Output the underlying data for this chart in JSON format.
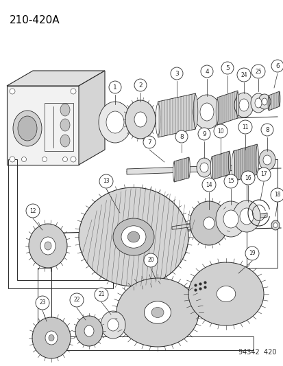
{
  "title": "210-420A",
  "footer": "94342  420",
  "bg_color": "#ffffff",
  "title_fontsize": 11,
  "footer_fontsize": 7,
  "gray": "#2a2a2a",
  "light_fill": "#f0f0f0",
  "mid_fill": "#d8d8d8",
  "gear_fill": "#c8c8c8"
}
